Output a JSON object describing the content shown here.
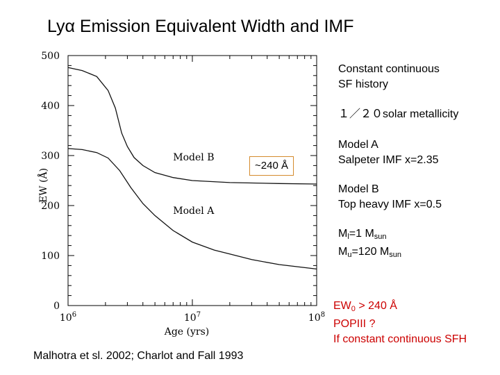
{
  "slide": {
    "title": "Lyα Emission Equivalent Width and IMF",
    "citation": "Malhotra et sl. 2002; Charlot and Fall 1993"
  },
  "sidebar": {
    "sf_history": [
      "Constant continuous",
      "SF history"
    ],
    "metallicity": "１／２０solar metallicity",
    "model_a": [
      "Model A",
      "Salpeter IMF x=2.35"
    ],
    "model_b": [
      "Model B",
      "Top heavy IMF x=0.5"
    ],
    "mass_lower": {
      "prefix": "M",
      "sub": "l",
      "value": "=1 M",
      "unit_sub": "sun"
    },
    "mass_upper": {
      "prefix": "M",
      "sub": "u",
      "value": "=120 M",
      "unit_sub": "sun"
    },
    "conclusion": {
      "line1_prefix": "EW",
      "line1_sub": "0",
      "line1_suffix": " > 240 Å",
      "line2": "POPIII ?",
      "line3": "If constant continuous SFH"
    }
  },
  "callout": {
    "text": "~240 Å"
  },
  "colors": {
    "conclusion_text": "#cc0000",
    "callout_border": "#d48a2c"
  },
  "chart_data": {
    "type": "line",
    "xscale": "log",
    "xlim": [
      1000000,
      100000000
    ],
    "ylim": [
      0,
      500
    ],
    "xlabel": "Age (yrs)",
    "ylabel": "EW (Å)",
    "x_ticks": [
      {
        "value": 1000000,
        "base": "10",
        "exp": "6"
      },
      {
        "value": 10000000,
        "base": "10",
        "exp": "7"
      },
      {
        "value": 100000000,
        "base": "10",
        "exp": "8"
      }
    ],
    "y_ticks": [
      0,
      100,
      200,
      300,
      400,
      500
    ],
    "series": [
      {
        "name": "Model B",
        "points": [
          [
            1000000,
            476
          ],
          [
            1300000,
            470
          ],
          [
            1700000,
            458
          ],
          [
            2100000,
            430
          ],
          [
            2400000,
            395
          ],
          [
            2700000,
            345
          ],
          [
            3000000,
            318
          ],
          [
            3400000,
            296
          ],
          [
            4000000,
            280
          ],
          [
            5000000,
            266
          ],
          [
            7000000,
            256
          ],
          [
            10000000,
            250
          ],
          [
            20000000,
            246
          ],
          [
            50000000,
            244
          ],
          [
            100000000,
            243
          ]
        ]
      },
      {
        "name": "Model A",
        "points": [
          [
            1000000,
            314
          ],
          [
            1300000,
            312
          ],
          [
            1700000,
            306
          ],
          [
            2100000,
            295
          ],
          [
            2600000,
            270
          ],
          [
            3200000,
            236
          ],
          [
            4000000,
            204
          ],
          [
            5000000,
            180
          ],
          [
            7000000,
            150
          ],
          [
            10000000,
            127
          ],
          [
            15000000,
            111
          ],
          [
            20000000,
            103
          ],
          [
            30000000,
            92
          ],
          [
            50000000,
            82
          ],
          [
            100000000,
            73
          ]
        ]
      }
    ],
    "series_labels": [
      {
        "text": "Model B",
        "x": 7000000,
        "y": 290
      },
      {
        "text": "Model A",
        "x": 7000000,
        "y": 183
      }
    ]
  }
}
